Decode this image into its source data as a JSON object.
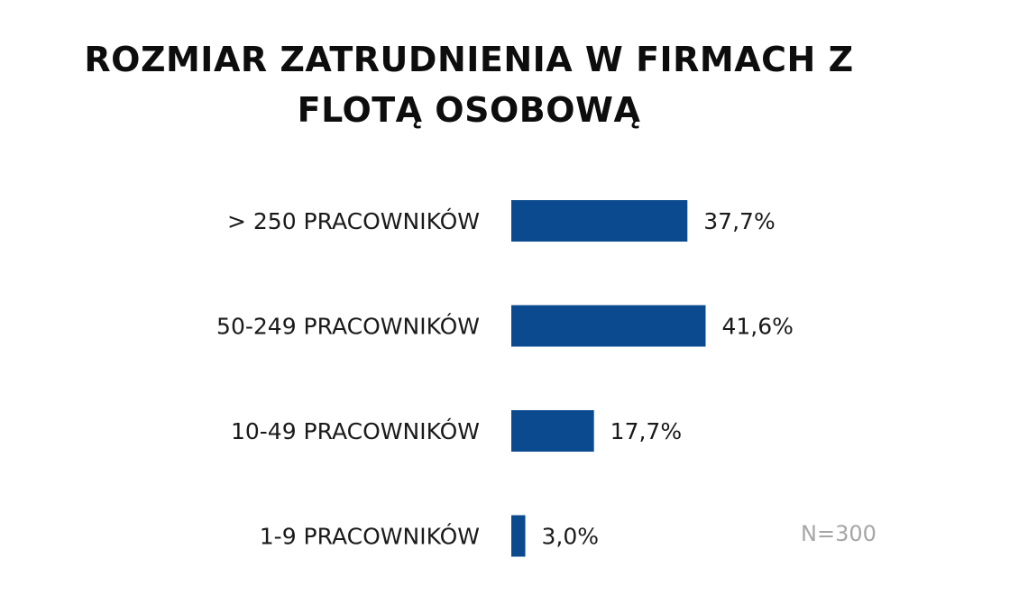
{
  "chart_data": {
    "type": "bar",
    "orientation": "horizontal",
    "title_lines": [
      "ROZMIAR ZATRUDNIENIA W FIRMACH Z",
      "FLOTĄ OSOBOWĄ"
    ],
    "categories": [
      "> 250 PRACOWNIKÓW",
      "50-249 PRACOWNIKÓW",
      "10-49 PRACOWNIKÓW",
      "1-9 PRACOWNIKÓW"
    ],
    "values": [
      37.7,
      41.6,
      17.7,
      3.0
    ],
    "value_labels": [
      "37,7%",
      "41,6%",
      "17,7%",
      "3,0%"
    ],
    "unit": "%",
    "bar_color": "#0b4a8f",
    "grid": false,
    "legend": "none",
    "note": "N=300"
  }
}
